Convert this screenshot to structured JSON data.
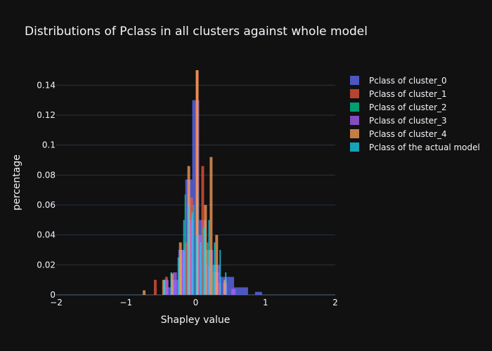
{
  "chart_data": {
    "type": "bar",
    "title": "Distributions of Pclass in all clusters against whole model",
    "xlabel": "Shapley value",
    "ylabel": "percentage",
    "xlim": [
      -2,
      2
    ],
    "ylim": [
      0,
      0.15
    ],
    "x_ticks": [
      {
        "value": -2,
        "label": "−2"
      },
      {
        "value": -1,
        "label": "−1"
      },
      {
        "value": 0,
        "label": "0"
      },
      {
        "value": 1,
        "label": "1"
      },
      {
        "value": 2,
        "label": "2"
      }
    ],
    "y_ticks": [
      {
        "value": 0,
        "label": "0"
      },
      {
        "value": 0.02,
        "label": "0.02"
      },
      {
        "value": 0.04,
        "label": "0.04"
      },
      {
        "value": 0.06,
        "label": "0.06"
      },
      {
        "value": 0.08,
        "label": "0.08"
      },
      {
        "value": 0.1,
        "label": "0.1"
      },
      {
        "value": 0.12,
        "label": "0.12"
      },
      {
        "value": 0.14,
        "label": "0.14"
      }
    ],
    "grid": true,
    "legend_position": "right",
    "barmode": "overlay",
    "opacity": 0.75,
    "series": [
      {
        "name": "Pclass of cluster_0",
        "color": "#636efa",
        "bin_width": 0.1,
        "bins": [
          {
            "x": -0.4,
            "y": 0.005
          },
          {
            "x": -0.3,
            "y": 0.01
          },
          {
            "x": -0.2,
            "y": 0.03
          },
          {
            "x": -0.1,
            "y": 0.077
          },
          {
            "x": 0.0,
            "y": 0.13
          },
          {
            "x": 0.1,
            "y": 0.05
          },
          {
            "x": 0.2,
            "y": 0.03
          },
          {
            "x": 0.3,
            "y": 0.02
          },
          {
            "x": 0.4,
            "y": 0.012
          },
          {
            "x": 0.5,
            "y": 0.012
          },
          {
            "x": 0.6,
            "y": 0.005
          },
          {
            "x": 0.7,
            "y": 0.005
          },
          {
            "x": 0.9,
            "y": 0.002
          }
        ]
      },
      {
        "name": "Pclass of cluster_1",
        "color": "#ef553b",
        "bin_width": 0.04,
        "bins": [
          {
            "x": -0.58,
            "y": 0.01
          },
          {
            "x": -0.42,
            "y": 0.012
          },
          {
            "x": -0.22,
            "y": 0.025
          },
          {
            "x": -0.14,
            "y": 0.035
          },
          {
            "x": -0.06,
            "y": 0.065
          },
          {
            "x": 0.02,
            "y": 0.15
          },
          {
            "x": 0.1,
            "y": 0.086
          },
          {
            "x": 0.18,
            "y": 0.03
          },
          {
            "x": 0.26,
            "y": 0.015
          },
          {
            "x": 0.34,
            "y": 0.008
          }
        ]
      },
      {
        "name": "Pclass of cluster_2",
        "color": "#00cc96",
        "bin_width": 0.02,
        "bins": [
          {
            "x": -0.35,
            "y": 0.015
          },
          {
            "x": -0.21,
            "y": 0.03
          },
          {
            "x": -0.15,
            "y": 0.067
          },
          {
            "x": -0.1,
            "y": 0.04
          },
          {
            "x": -0.03,
            "y": 0.06
          },
          {
            "x": 0.03,
            "y": 0.07
          },
          {
            "x": 0.11,
            "y": 0.045
          },
          {
            "x": 0.17,
            "y": 0.035
          },
          {
            "x": 0.25,
            "y": 0.02
          }
        ]
      },
      {
        "name": "Pclass of cluster_3",
        "color": "#ab63fa",
        "bin_width": 0.06,
        "bins": [
          {
            "x": -0.42,
            "y": 0.01
          },
          {
            "x": -0.3,
            "y": 0.015
          },
          {
            "x": -0.18,
            "y": 0.03
          },
          {
            "x": -0.06,
            "y": 0.05
          },
          {
            "x": 0.06,
            "y": 0.04
          },
          {
            "x": 0.18,
            "y": 0.02
          },
          {
            "x": 0.3,
            "y": 0.015
          },
          {
            "x": 0.42,
            "y": 0.008
          },
          {
            "x": 0.54,
            "y": 0.004
          }
        ]
      },
      {
        "name": "Pclass of cluster_4",
        "color": "#ffa15a",
        "bin_width": 0.04,
        "bins": [
          {
            "x": -0.74,
            "y": 0.003
          },
          {
            "x": -0.46,
            "y": 0.01
          },
          {
            "x": -0.34,
            "y": 0.014
          },
          {
            "x": -0.22,
            "y": 0.035
          },
          {
            "x": -0.1,
            "y": 0.086
          },
          {
            "x": 0.02,
            "y": 0.15
          },
          {
            "x": 0.14,
            "y": 0.06
          },
          {
            "x": 0.22,
            "y": 0.092
          },
          {
            "x": 0.3,
            "y": 0.04
          },
          {
            "x": 0.42,
            "y": 0.01
          }
        ]
      },
      {
        "name": "Pclass of the actual model",
        "color": "#19d3f3",
        "bin_width": 0.02,
        "bins": [
          {
            "x": -0.45,
            "y": 0.01
          },
          {
            "x": -0.35,
            "y": 0.015
          },
          {
            "x": -0.25,
            "y": 0.025
          },
          {
            "x": -0.17,
            "y": 0.05
          },
          {
            "x": -0.11,
            "y": 0.06
          },
          {
            "x": -0.05,
            "y": 0.055
          },
          {
            "x": 0.01,
            "y": 0.04
          },
          {
            "x": 0.07,
            "y": 0.035
          },
          {
            "x": 0.13,
            "y": 0.045
          },
          {
            "x": 0.19,
            "y": 0.05
          },
          {
            "x": 0.27,
            "y": 0.035
          },
          {
            "x": 0.35,
            "y": 0.03
          },
          {
            "x": 0.43,
            "y": 0.015
          }
        ]
      }
    ]
  }
}
